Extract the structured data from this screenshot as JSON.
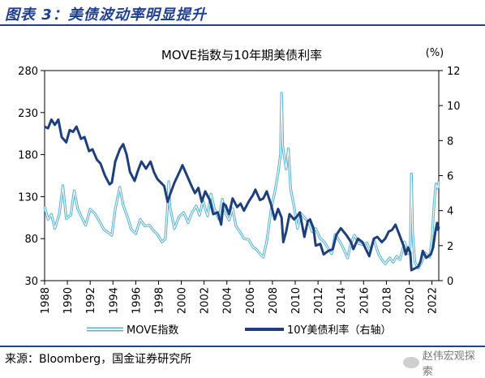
{
  "figure": {
    "title": "图表 3：美债波动率明显提升",
    "source": "来源：Bloomberg，国金证券研究所",
    "watermark": "赵伟宏观探索"
  },
  "colors": {
    "move": "#5ab2cf",
    "yield": "#1f3f7a",
    "brand": "#1f3f8f"
  },
  "chart_data": {
    "type": "line",
    "title": "MOVE指数与10年期美债利率",
    "y2_unit": "(%)",
    "x_ticks": [
      "1988",
      "1990",
      "1992",
      "1994",
      "1996",
      "1998",
      "2000",
      "2002",
      "2004",
      "2006",
      "2008",
      "2010",
      "2012",
      "2014",
      "2016",
      "2018",
      "2020",
      "2022"
    ],
    "y_left": {
      "ticks": [
        30,
        80,
        130,
        180,
        230,
        280
      ],
      "range": [
        30,
        280
      ]
    },
    "y_right": {
      "ticks": [
        0,
        2,
        4,
        6,
        8,
        10,
        12
      ],
      "range": [
        0,
        12
      ]
    },
    "x_range": [
      1988,
      2022.6
    ],
    "series": [
      {
        "name": "MOVE指数",
        "axis": "left",
        "style": "double-line",
        "points": [
          [
            1988.0,
            118
          ],
          [
            1988.3,
            103
          ],
          [
            1988.6,
            109
          ],
          [
            1988.9,
            92
          ],
          [
            1989.3,
            110
          ],
          [
            1989.6,
            143
          ],
          [
            1989.9,
            104
          ],
          [
            1990.3,
            108
          ],
          [
            1990.6,
            137
          ],
          [
            1990.9,
            116
          ],
          [
            1991.2,
            107
          ],
          [
            1991.6,
            96
          ],
          [
            1992.0,
            115
          ],
          [
            1992.4,
            110
          ],
          [
            1992.8,
            101
          ],
          [
            1993.2,
            91
          ],
          [
            1993.6,
            87
          ],
          [
            1993.9,
            84
          ],
          [
            1994.2,
            115
          ],
          [
            1994.6,
            141
          ],
          [
            1994.9,
            120
          ],
          [
            1995.3,
            105
          ],
          [
            1995.6,
            91
          ],
          [
            1996.0,
            86
          ],
          [
            1996.4,
            103
          ],
          [
            1996.8,
            95
          ],
          [
            1997.2,
            96
          ],
          [
            1997.6,
            89
          ],
          [
            1997.9,
            85
          ],
          [
            1998.3,
            76
          ],
          [
            1998.6,
            80
          ],
          [
            1998.8,
            120
          ],
          [
            1998.9,
            148
          ],
          [
            1999.0,
            118
          ],
          [
            1999.4,
            92
          ],
          [
            1999.8,
            106
          ],
          [
            2000.2,
            111
          ],
          [
            2000.6,
            99
          ],
          [
            2000.9,
            110
          ],
          [
            2001.3,
            119
          ],
          [
            2001.6,
            108
          ],
          [
            2001.9,
            125
          ],
          [
            2002.3,
            107
          ],
          [
            2002.6,
            133
          ],
          [
            2002.9,
            116
          ],
          [
            2003.3,
            103
          ],
          [
            2003.6,
            127
          ],
          [
            2003.9,
            110
          ],
          [
            2004.2,
            102
          ],
          [
            2004.5,
            116
          ],
          [
            2004.8,
            95
          ],
          [
            2005.2,
            87
          ],
          [
            2005.5,
            80
          ],
          [
            2005.9,
            79
          ],
          [
            2006.3,
            70
          ],
          [
            2006.6,
            67
          ],
          [
            2006.9,
            62
          ],
          [
            2007.2,
            58
          ],
          [
            2007.5,
            77
          ],
          [
            2007.9,
            116
          ],
          [
            2008.2,
            135
          ],
          [
            2008.5,
            158
          ],
          [
            2008.7,
            180
          ],
          [
            2008.8,
            253
          ],
          [
            2008.85,
            225
          ],
          [
            2008.9,
            190
          ],
          [
            2009.2,
            163
          ],
          [
            2009.4,
            187
          ],
          [
            2009.6,
            139
          ],
          [
            2009.9,
            118
          ],
          [
            2010.2,
            92
          ],
          [
            2010.5,
            110
          ],
          [
            2010.8,
            105
          ],
          [
            2011.2,
            99
          ],
          [
            2011.5,
            88
          ],
          [
            2011.8,
            92
          ],
          [
            2012.2,
            80
          ],
          [
            2012.5,
            77
          ],
          [
            2012.9,
            68
          ],
          [
            2013.2,
            62
          ],
          [
            2013.5,
            85
          ],
          [
            2013.9,
            77
          ],
          [
            2014.2,
            69
          ],
          [
            2014.6,
            57
          ],
          [
            2014.9,
            75
          ],
          [
            2015.2,
            84
          ],
          [
            2015.6,
            74
          ],
          [
            2015.9,
            73
          ],
          [
            2016.3,
            75
          ],
          [
            2016.6,
            65
          ],
          [
            2016.9,
            79
          ],
          [
            2017.3,
            62
          ],
          [
            2017.6,
            55
          ],
          [
            2017.9,
            50
          ],
          [
            2018.3,
            57
          ],
          [
            2018.6,
            52
          ],
          [
            2018.9,
            59
          ],
          [
            2019.2,
            55
          ],
          [
            2019.6,
            76
          ],
          [
            2019.9,
            62
          ],
          [
            2020.1,
            72
          ],
          [
            2020.2,
            157
          ],
          [
            2020.3,
            88
          ],
          [
            2020.5,
            52
          ],
          [
            2020.8,
            45
          ],
          [
            2021.1,
            52
          ],
          [
            2021.4,
            63
          ],
          [
            2021.8,
            58
          ],
          [
            2022.0,
            80
          ],
          [
            2022.2,
            123
          ],
          [
            2022.35,
            145
          ],
          [
            2022.5,
            140
          ],
          [
            2022.6,
            148
          ]
        ]
      },
      {
        "name": "10Y美债利率（右轴）",
        "axis": "right",
        "style": "line",
        "points": [
          [
            1988.0,
            8.8
          ],
          [
            1988.3,
            8.7
          ],
          [
            1988.6,
            9.2
          ],
          [
            1988.9,
            8.9
          ],
          [
            1989.2,
            9.2
          ],
          [
            1989.5,
            8.2
          ],
          [
            1989.9,
            7.9
          ],
          [
            1990.2,
            8.6
          ],
          [
            1990.5,
            8.5
          ],
          [
            1990.8,
            8.8
          ],
          [
            1991.2,
            8.1
          ],
          [
            1991.5,
            8.2
          ],
          [
            1991.9,
            7.4
          ],
          [
            1992.2,
            7.5
          ],
          [
            1992.6,
            6.9
          ],
          [
            1992.9,
            6.7
          ],
          [
            1993.3,
            6.0
          ],
          [
            1993.7,
            5.5
          ],
          [
            1993.9,
            5.6
          ],
          [
            1994.2,
            6.8
          ],
          [
            1994.6,
            7.5
          ],
          [
            1994.9,
            7.8
          ],
          [
            1995.2,
            7.2
          ],
          [
            1995.5,
            6.2
          ],
          [
            1995.9,
            5.7
          ],
          [
            1996.2,
            6.3
          ],
          [
            1996.5,
            6.8
          ],
          [
            1996.9,
            6.4
          ],
          [
            1997.3,
            6.8
          ],
          [
            1997.6,
            6.2
          ],
          [
            1997.9,
            5.8
          ],
          [
            1998.2,
            5.6
          ],
          [
            1998.5,
            5.4
          ],
          [
            1998.8,
            4.5
          ],
          [
            1999.0,
            4.9
          ],
          [
            1999.4,
            5.6
          ],
          [
            1999.9,
            6.3
          ],
          [
            2000.1,
            6.6
          ],
          [
            2000.5,
            6.0
          ],
          [
            2000.9,
            5.4
          ],
          [
            2001.2,
            5.0
          ],
          [
            2001.5,
            5.3
          ],
          [
            2001.8,
            4.5
          ],
          [
            2002.1,
            5.1
          ],
          [
            2002.5,
            4.6
          ],
          [
            2002.8,
            3.8
          ],
          [
            2003.2,
            3.9
          ],
          [
            2003.5,
            3.2
          ],
          [
            2003.7,
            4.4
          ],
          [
            2003.9,
            4.3
          ],
          [
            2004.2,
            3.8
          ],
          [
            2004.5,
            4.7
          ],
          [
            2004.9,
            4.2
          ],
          [
            2005.2,
            4.4
          ],
          [
            2005.5,
            4.0
          ],
          [
            2005.9,
            4.5
          ],
          [
            2006.3,
            4.9
          ],
          [
            2006.5,
            5.2
          ],
          [
            2006.9,
            4.6
          ],
          [
            2007.2,
            4.7
          ],
          [
            2007.5,
            5.1
          ],
          [
            2007.9,
            4.3
          ],
          [
            2008.2,
            3.5
          ],
          [
            2008.5,
            4.1
          ],
          [
            2008.8,
            3.6
          ],
          [
            2008.95,
            2.2
          ],
          [
            2009.2,
            2.8
          ],
          [
            2009.5,
            3.8
          ],
          [
            2009.9,
            3.5
          ],
          [
            2010.2,
            3.7
          ],
          [
            2010.4,
            3.9
          ],
          [
            2010.8,
            2.5
          ],
          [
            2011.1,
            3.4
          ],
          [
            2011.3,
            3.5
          ],
          [
            2011.6,
            3.0
          ],
          [
            2011.8,
            2.0
          ],
          [
            2012.2,
            2.1
          ],
          [
            2012.5,
            1.5
          ],
          [
            2012.9,
            1.7
          ],
          [
            2013.3,
            1.8
          ],
          [
            2013.6,
            2.6
          ],
          [
            2013.9,
            2.9
          ],
          [
            2014.0,
            3.0
          ],
          [
            2014.5,
            2.6
          ],
          [
            2014.9,
            2.2
          ],
          [
            2015.1,
            1.8
          ],
          [
            2015.5,
            2.4
          ],
          [
            2015.9,
            2.2
          ],
          [
            2016.2,
            1.8
          ],
          [
            2016.5,
            1.4
          ],
          [
            2016.9,
            2.4
          ],
          [
            2017.2,
            2.5
          ],
          [
            2017.6,
            2.2
          ],
          [
            2017.9,
            2.4
          ],
          [
            2018.2,
            2.8
          ],
          [
            2018.5,
            2.9
          ],
          [
            2018.8,
            3.2
          ],
          [
            2019.1,
            2.7
          ],
          [
            2019.5,
            2.0
          ],
          [
            2019.7,
            1.5
          ],
          [
            2019.9,
            1.9
          ],
          [
            2020.1,
            1.6
          ],
          [
            2020.2,
            0.6
          ],
          [
            2020.5,
            0.7
          ],
          [
            2020.8,
            0.8
          ],
          [
            2021.0,
            1.1
          ],
          [
            2021.2,
            1.7
          ],
          [
            2021.5,
            1.3
          ],
          [
            2021.9,
            1.5
          ],
          [
            2022.1,
            1.9
          ],
          [
            2022.3,
            2.8
          ],
          [
            2022.45,
            3.3
          ],
          [
            2022.55,
            2.9
          ],
          [
            2022.6,
            3.1
          ]
        ]
      }
    ],
    "legend": [
      "MOVE指数",
      "10Y美债利率（右轴）"
    ],
    "legend_position": "bottom"
  }
}
